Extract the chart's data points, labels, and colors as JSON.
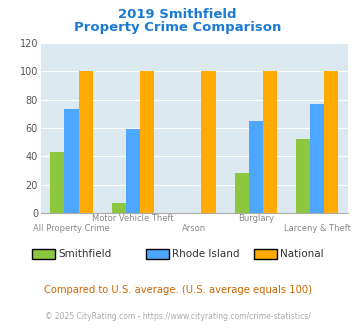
{
  "title_line1": "2019 Smithfield",
  "title_line2": "Property Crime Comparison",
  "series": {
    "Smithfield": [
      43,
      7,
      0,
      28,
      52
    ],
    "Rhode Island": [
      73,
      59,
      0,
      65,
      77
    ],
    "National": [
      100,
      100,
      100,
      100,
      100
    ]
  },
  "top_labels": [
    "",
    "Motor Vehicle Theft",
    "",
    "Burglary",
    ""
  ],
  "bottom_labels": [
    "All Property Crime",
    "",
    "Arson",
    "",
    "Larceny & Theft"
  ],
  "colors": {
    "Smithfield": "#8dc63f",
    "Rhode Island": "#4da6ff",
    "National": "#ffaa00"
  },
  "ylim": [
    0,
    120
  ],
  "yticks": [
    0,
    20,
    40,
    60,
    80,
    100,
    120
  ],
  "title_color": "#1a7ad4",
  "label_color": "#888888",
  "subtitle_note": "Compared to U.S. average. (U.S. average equals 100)",
  "copyright_left": "© 2025 CityRating.com - ",
  "copyright_link": "https://www.cityrating.com/crime-statistics/",
  "plot_bg": "#dce9f0",
  "grid_color": "#ffffff",
  "subtitle_color": "#cc6600",
  "copyright_color": "#aaaaaa",
  "link_color": "#4da6ff"
}
